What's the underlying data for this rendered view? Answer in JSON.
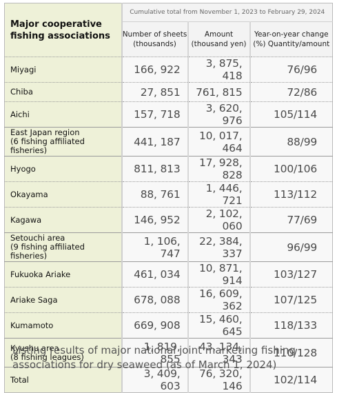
{
  "header": {
    "title": "Major cooperative fishing associations",
    "period": "Cumulative total from November 1, 2023 to February 29, 2024"
  },
  "columns": [
    "Number of sheets (thousands)",
    "Amount (thousand yen)",
    "Year-on-year change (%) Quantity/amount"
  ],
  "rows": [
    [
      "Miyagi",
      "166, 922",
      "3, 875, 418",
      "76/96"
    ],
    [
      "Chiba",
      "27, 851",
      "761, 815",
      "72/86"
    ],
    [
      "Aichi",
      "157, 718",
      "3, 620, 976",
      "105/114"
    ],
    [
      "East Japan region\n(6 fishing affiliated fisheries)",
      "441, 187",
      "10, 017, 464",
      "88/99"
    ],
    [
      "Hyogo",
      "811, 813",
      "17, 928, 828",
      "100/106"
    ],
    [
      "Okayama",
      "88, 761",
      "1, 446, 721",
      "113/112"
    ],
    [
      "Kagawa",
      "146, 952",
      "2, 102, 060",
      "77/69"
    ],
    [
      "Setouchi area\n(9 fishing affiliated fisheries)",
      "1, 106, 747",
      "22, 384, 337",
      "96/99"
    ],
    [
      "Fukuoka Ariake",
      "461, 034",
      "10, 871, 914",
      "103/127"
    ],
    [
      "Ariake Saga",
      "678, 088",
      "16, 609, 362",
      "107/125"
    ],
    [
      "Kumamoto",
      "669, 908",
      "15, 460, 645",
      "118/133"
    ],
    [
      "Kyushu area\n(8 fishing leagues)",
      "1, 819, 855",
      "43, 134, 343",
      "110/128"
    ],
    [
      "Total",
      "3, 409, 603",
      "76, 320, 146",
      "102/114"
    ]
  ],
  "caption": "Listing results of major national joint marketing fishing associations for dry seaweed (as of March 1, 2024)"
}
